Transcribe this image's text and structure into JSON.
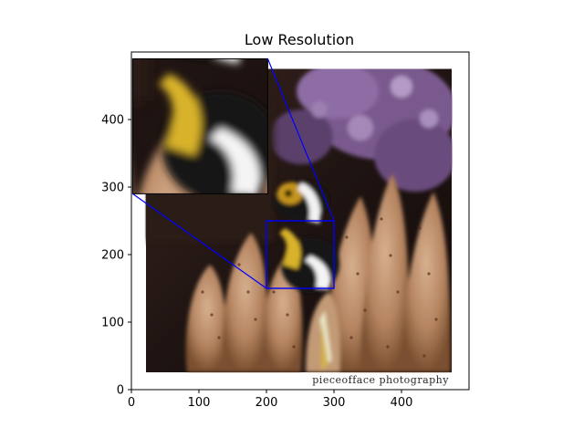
{
  "chart_data": {
    "type": "image",
    "title": "Low Resolution",
    "xlabel": "",
    "ylabel": "",
    "xlim": [
      0,
      500
    ],
    "ylim": [
      0,
      500
    ],
    "xticks": [
      0,
      100,
      200,
      300,
      400
    ],
    "yticks": [
      0,
      100,
      200,
      300,
      400
    ],
    "grid": false,
    "image_extent": {
      "x": [
        20,
        475
      ],
      "y": [
        25,
        475
      ]
    },
    "zoom_region": {
      "x": [
        200,
        300
      ],
      "y": [
        150,
        250
      ]
    },
    "inset_extent": {
      "x": [
        10,
        210
      ],
      "y": [
        290,
        490
      ]
    },
    "watermark_text": "pieceofface photography"
  },
  "colors": {
    "axes": "#000000",
    "zoom_box": "#0000ff",
    "background": "#ffffff"
  }
}
